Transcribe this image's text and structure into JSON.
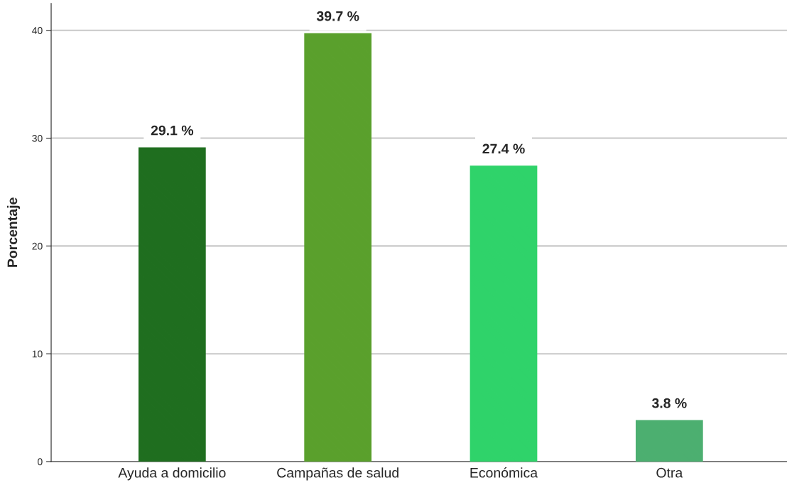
{
  "chart_data": {
    "type": "bar",
    "ylabel": "Porcentaje",
    "categories": [
      "Ayuda a domicilio",
      "Campañas de salud",
      "Económica",
      "Otra"
    ],
    "values": [
      29.1,
      39.7,
      27.4,
      3.8
    ],
    "colors": [
      "#1f6e1f",
      "#5aa02c",
      "#2fd36a",
      "#4caf70"
    ],
    "value_labels": [
      "29.1 %",
      "39.7 %",
      "27.4 %",
      "3.8 %"
    ],
    "ylim": [
      0,
      42.5
    ],
    "yticks": [
      0,
      10,
      20,
      30,
      40
    ],
    "grid": "y"
  }
}
